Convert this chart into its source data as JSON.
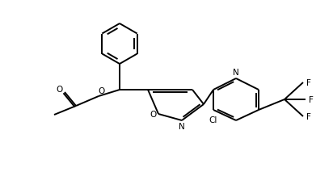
{
  "bg_color": "#ffffff",
  "line_color": "#000000",
  "lw": 1.4,
  "figsize": [
    4.12,
    2.3
  ],
  "dpi": 100,
  "xlim": [
    0,
    412
  ],
  "ylim": [
    0,
    230
  ]
}
